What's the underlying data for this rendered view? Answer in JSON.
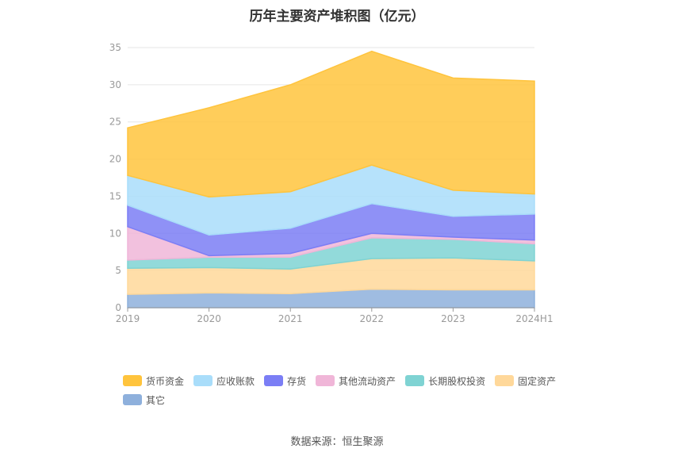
{
  "title": "历年主要资产堆积图（亿元）",
  "source": "数据来源：恒生聚源",
  "chart_data": {
    "type": "area",
    "stacked": true,
    "categories": [
      "2019",
      "2020",
      "2021",
      "2022",
      "2023",
      "2024H1"
    ],
    "ylim": [
      0,
      35
    ],
    "yticks": [
      0,
      5,
      10,
      15,
      20,
      25,
      30,
      35
    ],
    "grid": true,
    "legend_position": "bottom",
    "series": [
      {
        "name": "其它",
        "color": "#8eb0dc",
        "values": [
          1.8,
          2.0,
          1.9,
          2.5,
          2.4,
          2.4
        ]
      },
      {
        "name": "固定资产",
        "color": "#ffd89a",
        "values": [
          3.5,
          3.4,
          3.3,
          4.1,
          4.3,
          3.9
        ]
      },
      {
        "name": "长期股权投资",
        "color": "#7fd3d3",
        "values": [
          1.1,
          1.4,
          1.6,
          2.8,
          2.5,
          2.3
        ]
      },
      {
        "name": "其他流动资产",
        "color": "#f0b6d8",
        "values": [
          4.5,
          0.2,
          0.5,
          0.6,
          0.3,
          0.5
        ]
      },
      {
        "name": "存货",
        "color": "#7b7ef5",
        "values": [
          2.9,
          2.8,
          3.4,
          4.0,
          2.8,
          3.5
        ]
      },
      {
        "name": "应收账款",
        "color": "#a9ddfa",
        "values": [
          4.0,
          5.1,
          4.9,
          5.2,
          3.5,
          2.7
        ]
      },
      {
        "name": "货币资金",
        "color": "#ffc43d",
        "values": [
          6.4,
          12.0,
          14.4,
          15.3,
          15.1,
          15.2
        ]
      }
    ],
    "legend_order": [
      "货币资金",
      "应收账款",
      "存货",
      "其他流动资产",
      "长期股权投资",
      "固定资产",
      "其它"
    ]
  }
}
